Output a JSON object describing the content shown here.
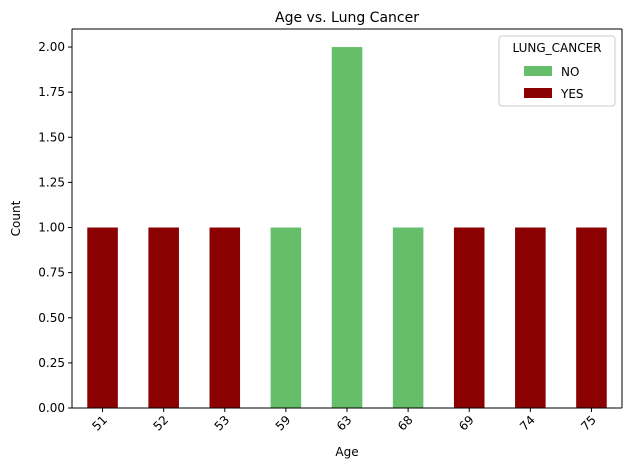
{
  "chart_data": {
    "type": "bar",
    "stacked": true,
    "title": "Age vs. Lung Cancer",
    "xlabel": "Age",
    "ylabel": "Count",
    "categories": [
      "51",
      "52",
      "53",
      "59",
      "63",
      "68",
      "69",
      "74",
      "75"
    ],
    "series": [
      {
        "name": "NO",
        "color": "#66bd6a",
        "values": [
          0,
          0,
          0,
          1,
          2,
          1,
          0,
          0,
          0
        ]
      },
      {
        "name": "YES",
        "color": "#8b0000",
        "values": [
          1,
          1,
          1,
          0,
          0,
          0,
          1,
          1,
          1
        ]
      }
    ],
    "ylim": [
      0,
      2.1
    ],
    "yticks": [
      "0.00",
      "0.25",
      "0.50",
      "0.75",
      "1.00",
      "1.25",
      "1.50",
      "1.75",
      "2.00"
    ],
    "legend_title": "LUNG_CANCER",
    "legend_position": "top-right",
    "grid": false
  }
}
